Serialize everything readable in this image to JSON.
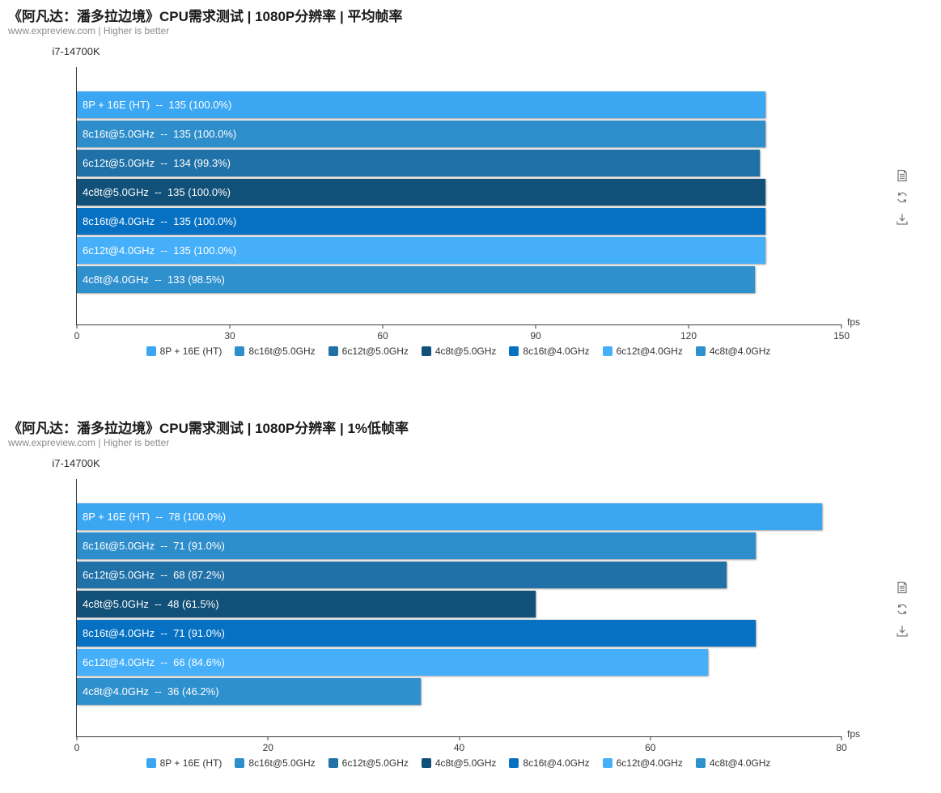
{
  "page": {
    "background": "#ffffff",
    "axis_color": "#3c3c3c"
  },
  "toolbar": {
    "icons": [
      {
        "name": "data-view-icon"
      },
      {
        "name": "restore-icon"
      },
      {
        "name": "save-image-icon"
      }
    ]
  },
  "chart_data": [
    {
      "type": "bar",
      "orientation": "horizontal",
      "title": "《阿凡达：潘多拉边境》CPU需求测试 | 1080P分辨率 | 平均帧率",
      "subtitle": "www.expreview.com | Higher is better",
      "group_label": "i7-14700K",
      "xlabel": "fps",
      "xlim": [
        0,
        150
      ],
      "xticks": [
        0,
        30,
        60,
        90,
        120,
        150
      ],
      "grid": false,
      "legend_position": "bottom",
      "series": [
        {
          "name": "8P + 16E (HT)",
          "value": 135,
          "percent_label": "100.0%",
          "bar_label": "8P + 16E (HT)  --  135 (100.0%)",
          "color": "#3BA7F3"
        },
        {
          "name": "8c16t@5.0GHz",
          "value": 135,
          "percent_label": "100.0%",
          "bar_label": "8c16t@5.0GHz  --  135 (100.0%)",
          "color": "#2E8ECB"
        },
        {
          "name": "6c12t@5.0GHz",
          "value": 134,
          "percent_label": "99.3%",
          "bar_label": "6c12t@5.0GHz  --  134 (99.3%)",
          "color": "#1F71A8"
        },
        {
          "name": "4c8t@5.0GHz",
          "value": 135,
          "percent_label": "100.0%",
          "bar_label": "4c8t@5.0GHz  --  135 (100.0%)",
          "color": "#115078"
        },
        {
          "name": "8c16t@4.0GHz",
          "value": 135,
          "percent_label": "100.0%",
          "bar_label": "8c16t@4.0GHz  --  135 (100.0%)",
          "color": "#0671C3"
        },
        {
          "name": "6c12t@4.0GHz",
          "value": 135,
          "percent_label": "100.0%",
          "bar_label": "6c12t@4.0GHz  --  135 (100.0%)",
          "color": "#45AFFA"
        },
        {
          "name": "4c8t@4.0GHz",
          "value": 133,
          "percent_label": "98.5%",
          "bar_label": "4c8t@4.0GHz  --  133 (98.5%)",
          "color": "#2F90CE"
        }
      ]
    },
    {
      "type": "bar",
      "orientation": "horizontal",
      "title": "《阿凡达：潘多拉边境》CPU需求测试 | 1080P分辨率 | 1%低帧率",
      "subtitle": "www.expreview.com | Higher is better",
      "group_label": "i7-14700K",
      "xlabel": "fps",
      "xlim": [
        0,
        80
      ],
      "xticks": [
        0,
        20,
        40,
        60,
        80
      ],
      "grid": false,
      "legend_position": "bottom",
      "series": [
        {
          "name": "8P + 16E (HT)",
          "value": 78,
          "percent_label": "100.0%",
          "bar_label": "8P + 16E (HT)  --  78 (100.0%)",
          "color": "#3BA7F3"
        },
        {
          "name": "8c16t@5.0GHz",
          "value": 71,
          "percent_label": "91.0%",
          "bar_label": "8c16t@5.0GHz  --  71 (91.0%)",
          "color": "#2E8ECB"
        },
        {
          "name": "6c12t@5.0GHz",
          "value": 68,
          "percent_label": "87.2%",
          "bar_label": "6c12t@5.0GHz  --  68 (87.2%)",
          "color": "#1F71A8"
        },
        {
          "name": "4c8t@5.0GHz",
          "value": 48,
          "percent_label": "61.5%",
          "bar_label": "4c8t@5.0GHz  --  48 (61.5%)",
          "color": "#115078"
        },
        {
          "name": "8c16t@4.0GHz",
          "value": 71,
          "percent_label": "91.0%",
          "bar_label": "8c16t@4.0GHz  --  71 (91.0%)",
          "color": "#0671C3"
        },
        {
          "name": "6c12t@4.0GHz",
          "value": 66,
          "percent_label": "84.6%",
          "bar_label": "6c12t@4.0GHz  --  66 (84.6%)",
          "color": "#45AFFA"
        },
        {
          "name": "4c8t@4.0GHz",
          "value": 36,
          "percent_label": "46.2%",
          "bar_label": "4c8t@4.0GHz  --  36 (46.2%)",
          "color": "#2F90CE"
        }
      ]
    }
  ]
}
